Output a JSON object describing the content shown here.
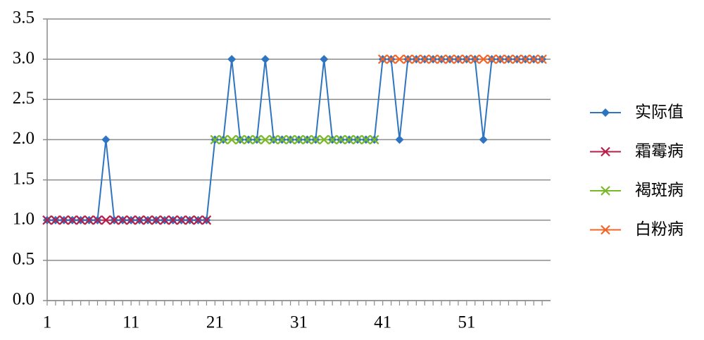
{
  "chart_data": {
    "type": "line",
    "x": [
      1,
      2,
      3,
      4,
      5,
      6,
      7,
      8,
      9,
      10,
      11,
      12,
      13,
      14,
      15,
      16,
      17,
      18,
      19,
      20,
      21,
      22,
      23,
      24,
      25,
      26,
      27,
      28,
      29,
      30,
      31,
      32,
      33,
      34,
      35,
      36,
      37,
      38,
      39,
      40,
      41,
      42,
      43,
      44,
      45,
      46,
      47,
      48,
      49,
      50,
      51,
      52,
      53,
      54,
      55,
      56,
      57,
      58,
      59,
      60
    ],
    "xlim": [
      1,
      61
    ],
    "xticks": [
      1,
      11,
      21,
      31,
      41,
      51
    ],
    "ylim": [
      0,
      3.5
    ],
    "yticks": [
      {
        "value": 0,
        "label": "0.0"
      },
      {
        "value": 0.5,
        "label": "0.5"
      },
      {
        "value": 1,
        "label": "1.0"
      },
      {
        "value": 1.5,
        "label": "1.5"
      },
      {
        "value": 2,
        "label": "2.0"
      },
      {
        "value": 2.5,
        "label": "2.5"
      },
      {
        "value": 3,
        "label": "3.0"
      },
      {
        "value": 3.5,
        "label": "3.5"
      }
    ],
    "grid": true,
    "legend": "right",
    "series": [
      {
        "name": "实际值",
        "color": "#2e74c0",
        "marker": "diamond",
        "values": [
          1,
          1,
          1,
          1,
          1,
          1,
          1,
          2,
          1,
          1,
          1,
          1,
          1,
          1,
          1,
          1,
          1,
          1,
          1,
          1,
          2,
          2,
          3,
          2,
          2,
          2,
          3,
          2,
          2,
          2,
          2,
          2,
          2,
          3,
          2,
          2,
          2,
          2,
          2,
          2,
          3,
          3,
          2,
          3,
          3,
          3,
          3,
          3,
          3,
          3,
          3,
          3,
          2,
          3,
          3,
          3,
          3,
          3,
          3,
          3
        ]
      },
      {
        "name": "霜霉病",
        "color": "#b5204a",
        "marker": "x",
        "values": [
          1,
          1,
          1,
          1,
          1,
          1,
          1,
          1,
          1,
          1,
          1,
          1,
          1,
          1,
          1,
          1,
          1,
          1,
          1,
          1,
          null,
          null,
          null,
          null,
          null,
          null,
          null,
          null,
          null,
          null,
          null,
          null,
          null,
          null,
          null,
          null,
          null,
          null,
          null,
          null,
          null,
          null,
          null,
          null,
          null,
          null,
          null,
          null,
          null,
          null,
          null,
          null,
          null,
          null,
          null,
          null,
          null,
          null,
          null,
          null
        ]
      },
      {
        "name": "褐斑病",
        "color": "#7ab829",
        "marker": "x",
        "values": [
          null,
          null,
          null,
          null,
          null,
          null,
          null,
          null,
          null,
          null,
          null,
          null,
          null,
          null,
          null,
          null,
          null,
          null,
          null,
          null,
          2,
          2,
          2,
          2,
          2,
          2,
          2,
          2,
          2,
          2,
          2,
          2,
          2,
          2,
          2,
          2,
          2,
          2,
          2,
          2,
          null,
          null,
          null,
          null,
          null,
          null,
          null,
          null,
          null,
          null,
          null,
          null,
          null,
          null,
          null,
          null,
          null,
          null,
          null,
          null
        ]
      },
      {
        "name": "白粉病",
        "color": "#f0642a",
        "marker": "x",
        "values": [
          null,
          null,
          null,
          null,
          null,
          null,
          null,
          null,
          null,
          null,
          null,
          null,
          null,
          null,
          null,
          null,
          null,
          null,
          null,
          null,
          null,
          null,
          null,
          null,
          null,
          null,
          null,
          null,
          null,
          null,
          null,
          null,
          null,
          null,
          null,
          null,
          null,
          null,
          null,
          null,
          3,
          3,
          3,
          3,
          3,
          3,
          3,
          3,
          3,
          3,
          3,
          3,
          3,
          3,
          3,
          3,
          3,
          3,
          3,
          3
        ]
      }
    ]
  }
}
